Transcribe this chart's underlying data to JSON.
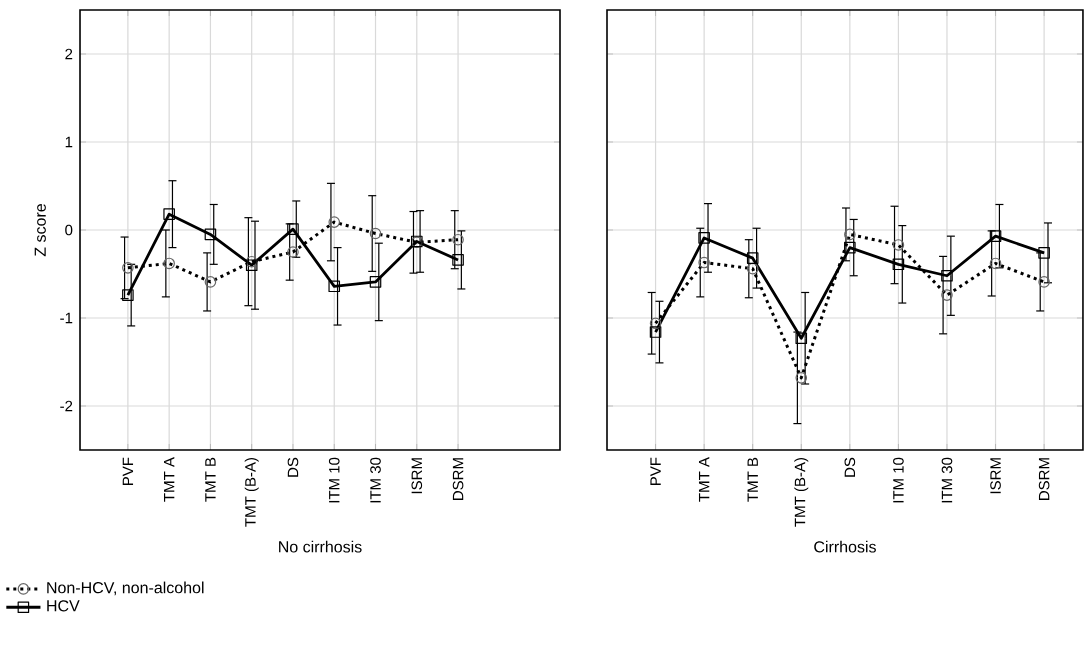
{
  "chart_data": [
    {
      "type": "line",
      "xlabel": "No cirrhosis",
      "ylabel": "Z score",
      "categories": [
        "PVF",
        "TMT  A",
        "TMT B",
        "TMT (B-A)",
        "DS",
        "ITM 10",
        "ITM 30",
        "ISRM",
        "DSRM"
      ],
      "ylim": [
        -2.5,
        2.5
      ],
      "yticks": [
        -2,
        -1,
        0,
        1,
        2
      ],
      "grid": true,
      "legend": "bottom left",
      "series": [
        {
          "name": "Non-HCV, non-alcohol",
          "color": "#000000",
          "marker": "circle",
          "line_style": "dotted",
          "values": [
            -0.43,
            -0.38,
            -0.59,
            -0.36,
            -0.25,
            0.09,
            -0.04,
            -0.14,
            -0.11
          ],
          "errors": [
            0.35,
            0.38,
            0.33,
            0.5,
            0.32,
            0.44,
            0.43,
            0.35,
            0.33
          ]
        },
        {
          "name": "HCV",
          "color": "#000000",
          "marker": "square",
          "line_style": "solid",
          "values": [
            -0.74,
            0.18,
            -0.05,
            -0.4,
            0.01,
            -0.64,
            -0.59,
            -0.13,
            -0.34
          ],
          "errors": [
            0.35,
            0.38,
            0.34,
            0.5,
            0.32,
            0.44,
            0.44,
            0.35,
            0.33
          ]
        }
      ]
    },
    {
      "type": "line",
      "xlabel": "Cirrhosis",
      "categories": [
        "PVF",
        "TMT  A",
        "TMT B",
        "TMT (B-A)",
        "DS",
        "ITM 10",
        "ITM 30",
        "ISRM",
        "DSRM"
      ],
      "ylim": [
        -2.5,
        2.5
      ],
      "yticks": [
        -2,
        -1,
        0,
        1,
        2
      ],
      "grid": true,
      "tick_labels": "x",
      "series": [
        {
          "color": "#000000",
          "marker": "circle",
          "line_style": "dotted",
          "values": [
            -1.06,
            -0.37,
            -0.44,
            -1.68,
            -0.05,
            -0.17,
            -0.74,
            -0.38,
            -0.59
          ],
          "errors": [
            0.35,
            0.39,
            0.33,
            0.52,
            0.3,
            0.44,
            0.44,
            0.37,
            0.33
          ]
        },
        {
          "color": "#000000",
          "marker": "square",
          "line_style": "solid",
          "values": [
            -1.16,
            -0.09,
            -0.32,
            -1.23,
            -0.2,
            -0.39,
            -0.52,
            -0.07,
            -0.26
          ],
          "errors": [
            0.35,
            0.39,
            0.34,
            0.52,
            0.32,
            0.44,
            0.45,
            0.36,
            0.34
          ]
        }
      ]
    }
  ]
}
